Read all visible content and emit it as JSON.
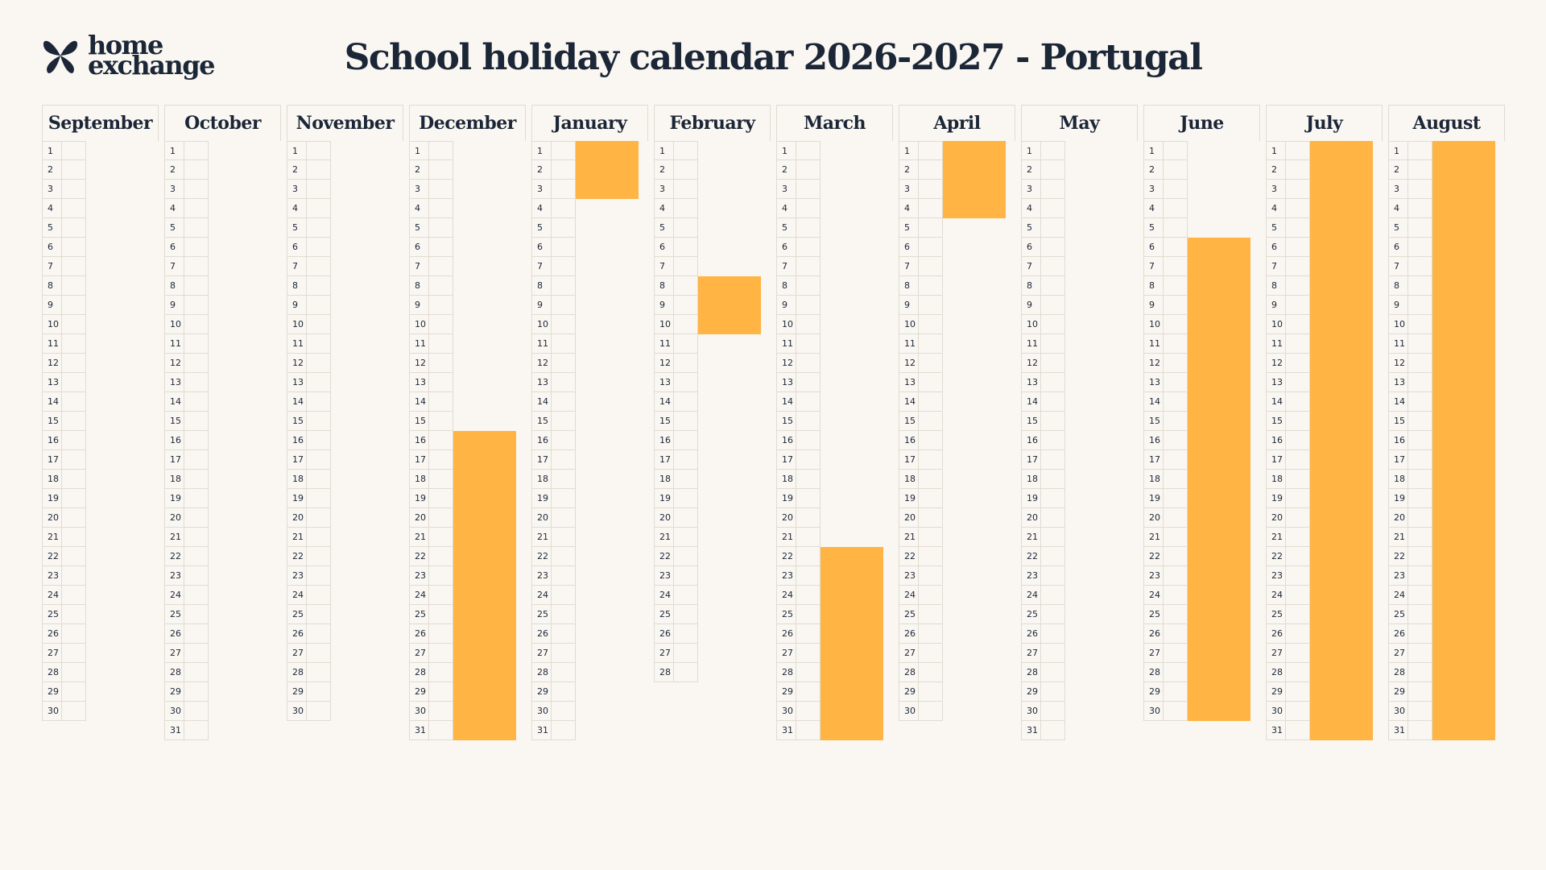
{
  "logo": {
    "line1": "home",
    "line2": "exchange",
    "mark_icon": "butterfly-icon"
  },
  "title": "School holiday calendar 2026-2027 - Portugal",
  "colors": {
    "holiday": "#ffb443",
    "text": "#1b2637",
    "background": "#faf7f2",
    "grid": "#e0dbd2"
  },
  "months": [
    {
      "name": "September",
      "days": 30,
      "holidays": []
    },
    {
      "name": "October",
      "days": 31,
      "holidays": []
    },
    {
      "name": "November",
      "days": 30,
      "holidays": []
    },
    {
      "name": "December",
      "days": 31,
      "holidays": [
        [
          16,
          31
        ]
      ]
    },
    {
      "name": "January",
      "days": 31,
      "holidays": [
        [
          1,
          3
        ]
      ]
    },
    {
      "name": "February",
      "days": 28,
      "holidays": [
        [
          8,
          10
        ]
      ]
    },
    {
      "name": "March",
      "days": 31,
      "holidays": [
        [
          22,
          31
        ]
      ]
    },
    {
      "name": "April",
      "days": 30,
      "holidays": [
        [
          1,
          4
        ]
      ]
    },
    {
      "name": "May",
      "days": 31,
      "holidays": []
    },
    {
      "name": "June",
      "days": 30,
      "holidays": [
        [
          6,
          30
        ]
      ]
    },
    {
      "name": "July",
      "days": 31,
      "holidays": [
        [
          1,
          31
        ]
      ]
    },
    {
      "name": "August",
      "days": 31,
      "holidays": [
        [
          1,
          31
        ]
      ]
    }
  ]
}
